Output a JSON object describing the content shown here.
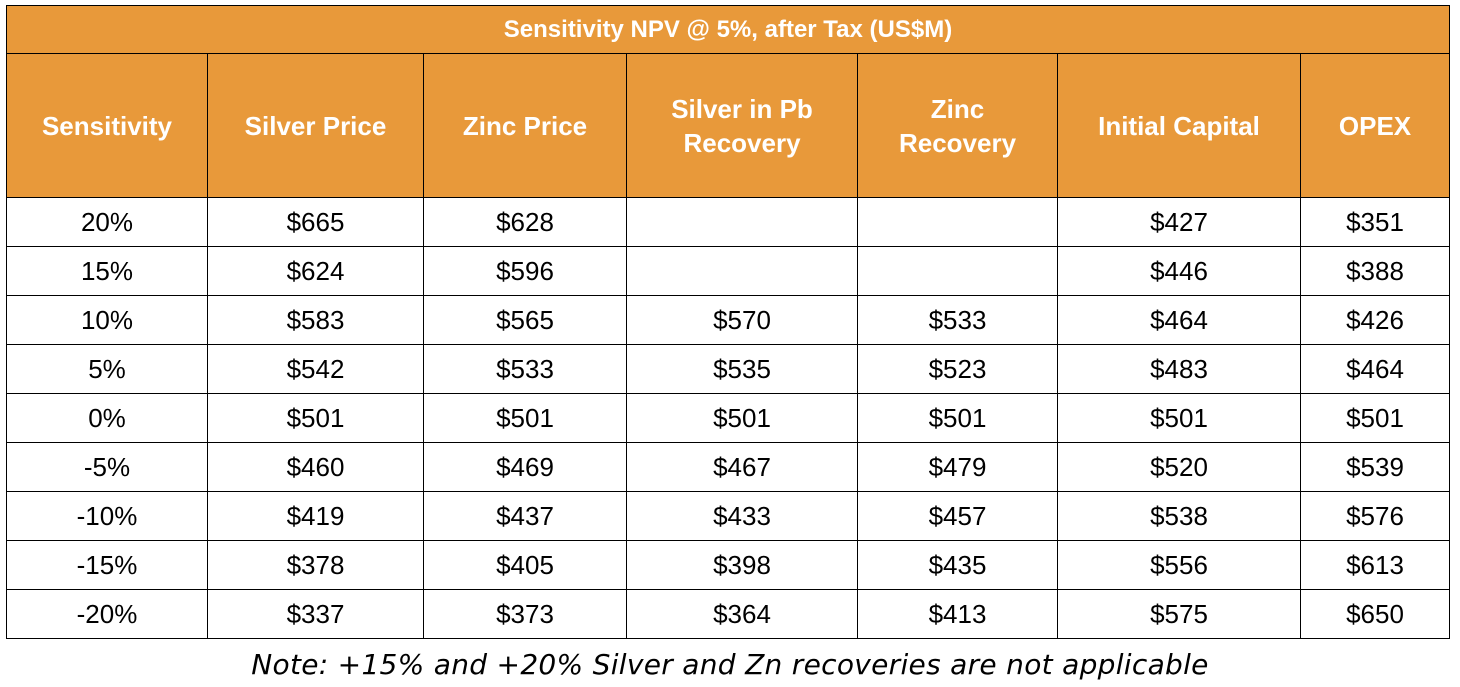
{
  "table": {
    "title": "Sensitivity NPV @ 5%, after Tax (US$M)",
    "header_color": "#E8993A",
    "columns": [
      {
        "line1": "Sensitivity",
        "line2": ""
      },
      {
        "line1": "Silver Price",
        "line2": ""
      },
      {
        "line1": "Zinc Price",
        "line2": ""
      },
      {
        "line1": "Silver in Pb",
        "line2": "Recovery"
      },
      {
        "line1": "Zinc",
        "line2": "Recovery"
      },
      {
        "line1": "Initial Capital",
        "line2": ""
      },
      {
        "line1": "OPEX",
        "line2": ""
      }
    ],
    "rows": [
      [
        "20%",
        "$665",
        "$628",
        "",
        "",
        "$427",
        "$351"
      ],
      [
        "15%",
        "$624",
        "$596",
        "",
        "",
        "$446",
        "$388"
      ],
      [
        "10%",
        "$583",
        "$565",
        "$570",
        "$533",
        "$464",
        "$426"
      ],
      [
        "5%",
        "$542",
        "$533",
        "$535",
        "$523",
        "$483",
        "$464"
      ],
      [
        "0%",
        "$501",
        "$501",
        "$501",
        "$501",
        "$501",
        "$501"
      ],
      [
        "-5%",
        "$460",
        "$469",
        "$467",
        "$479",
        "$520",
        "$539"
      ],
      [
        "-10%",
        "$419",
        "$437",
        "$433",
        "$457",
        "$538",
        "$576"
      ],
      [
        "-15%",
        "$378",
        "$405",
        "$398",
        "$435",
        "$556",
        "$613"
      ],
      [
        "-20%",
        "$337",
        "$373",
        "$364",
        "$413",
        "$575",
        "$650"
      ]
    ]
  },
  "note": "Note: +15% and +20% Silver and Zn recoveries are not applicable"
}
